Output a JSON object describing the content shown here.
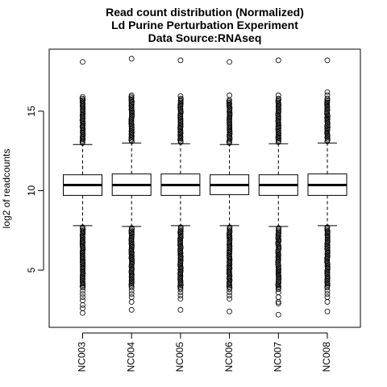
{
  "chart_data": {
    "type": "boxplot",
    "title": [
      "Read count distribution (Normalized)",
      "Ld Purine Perturbation Experiment",
      "Data Source:RNAseq"
    ],
    "xlabel": "",
    "ylabel": "log2 of readcounts",
    "ylim": [
      1.4,
      18.9
    ],
    "yticks": [
      5,
      10,
      15
    ],
    "grid": false,
    "legend": "none",
    "colors": {
      "box_fill": "#ffffff",
      "stroke": "#000000",
      "median": "#000000"
    },
    "categories": [
      "NC003",
      "NC004",
      "NC005",
      "NC006",
      "NC007",
      "NC008"
    ],
    "boxes": [
      {
        "q1": 9.7,
        "median": 10.35,
        "q3": 11.0,
        "whisker_low": 7.8,
        "whisker_high": 12.9,
        "outliers_high_dense": [
          13.0,
          15.8
        ],
        "outliers_low_dense": [
          3.9,
          7.7
        ],
        "outliers_high": [
          15.9,
          18.1
        ],
        "outliers_low": [
          3.7,
          3.5,
          3.3,
          3.1,
          2.8,
          2.6,
          2.3
        ]
      },
      {
        "q1": 9.7,
        "median": 10.35,
        "q3": 11.05,
        "whisker_low": 7.75,
        "whisker_high": 13.0,
        "outliers_high_dense": [
          13.1,
          15.9
        ],
        "outliers_low_dense": [
          4.0,
          7.65
        ],
        "outliers_high": [
          16.0,
          18.3
        ],
        "outliers_low": [
          3.9,
          3.7,
          3.5,
          3.3,
          3.0,
          2.5
        ]
      },
      {
        "q1": 9.7,
        "median": 10.35,
        "q3": 11.05,
        "whisker_low": 7.8,
        "whisker_high": 12.95,
        "outliers_high_dense": [
          13.05,
          15.8
        ],
        "outliers_low_dense": [
          3.9,
          7.7
        ],
        "outliers_high": [
          15.95,
          18.2
        ],
        "outliers_low": [
          3.8,
          3.6,
          3.4,
          3.2,
          2.5
        ]
      },
      {
        "q1": 9.75,
        "median": 10.35,
        "q3": 11.0,
        "whisker_low": 7.8,
        "whisker_high": 12.9,
        "outliers_high_dense": [
          13.0,
          15.7
        ],
        "outliers_low_dense": [
          3.9,
          7.7
        ],
        "outliers_high": [
          16.0,
          18.1
        ],
        "outliers_low": [
          3.8,
          3.6,
          3.4,
          3.2,
          2.4
        ]
      },
      {
        "q1": 9.7,
        "median": 10.35,
        "q3": 11.0,
        "whisker_low": 7.75,
        "whisker_high": 12.95,
        "outliers_high_dense": [
          13.05,
          15.8
        ],
        "outliers_low_dense": [
          3.8,
          7.65
        ],
        "outliers_high": [
          16.0,
          18.2
        ],
        "outliers_low": [
          3.6,
          3.3,
          3.0,
          2.9,
          2.2
        ]
      },
      {
        "q1": 9.7,
        "median": 10.35,
        "q3": 11.05,
        "whisker_low": 7.8,
        "whisker_high": 13.0,
        "outliers_high_dense": [
          13.1,
          15.8
        ],
        "outliers_low_dense": [
          3.9,
          7.7
        ],
        "outliers_high": [
          16.0,
          16.2,
          18.2
        ],
        "outliers_low": [
          3.7,
          3.5,
          3.3,
          3.0,
          2.4
        ]
      }
    ]
  }
}
